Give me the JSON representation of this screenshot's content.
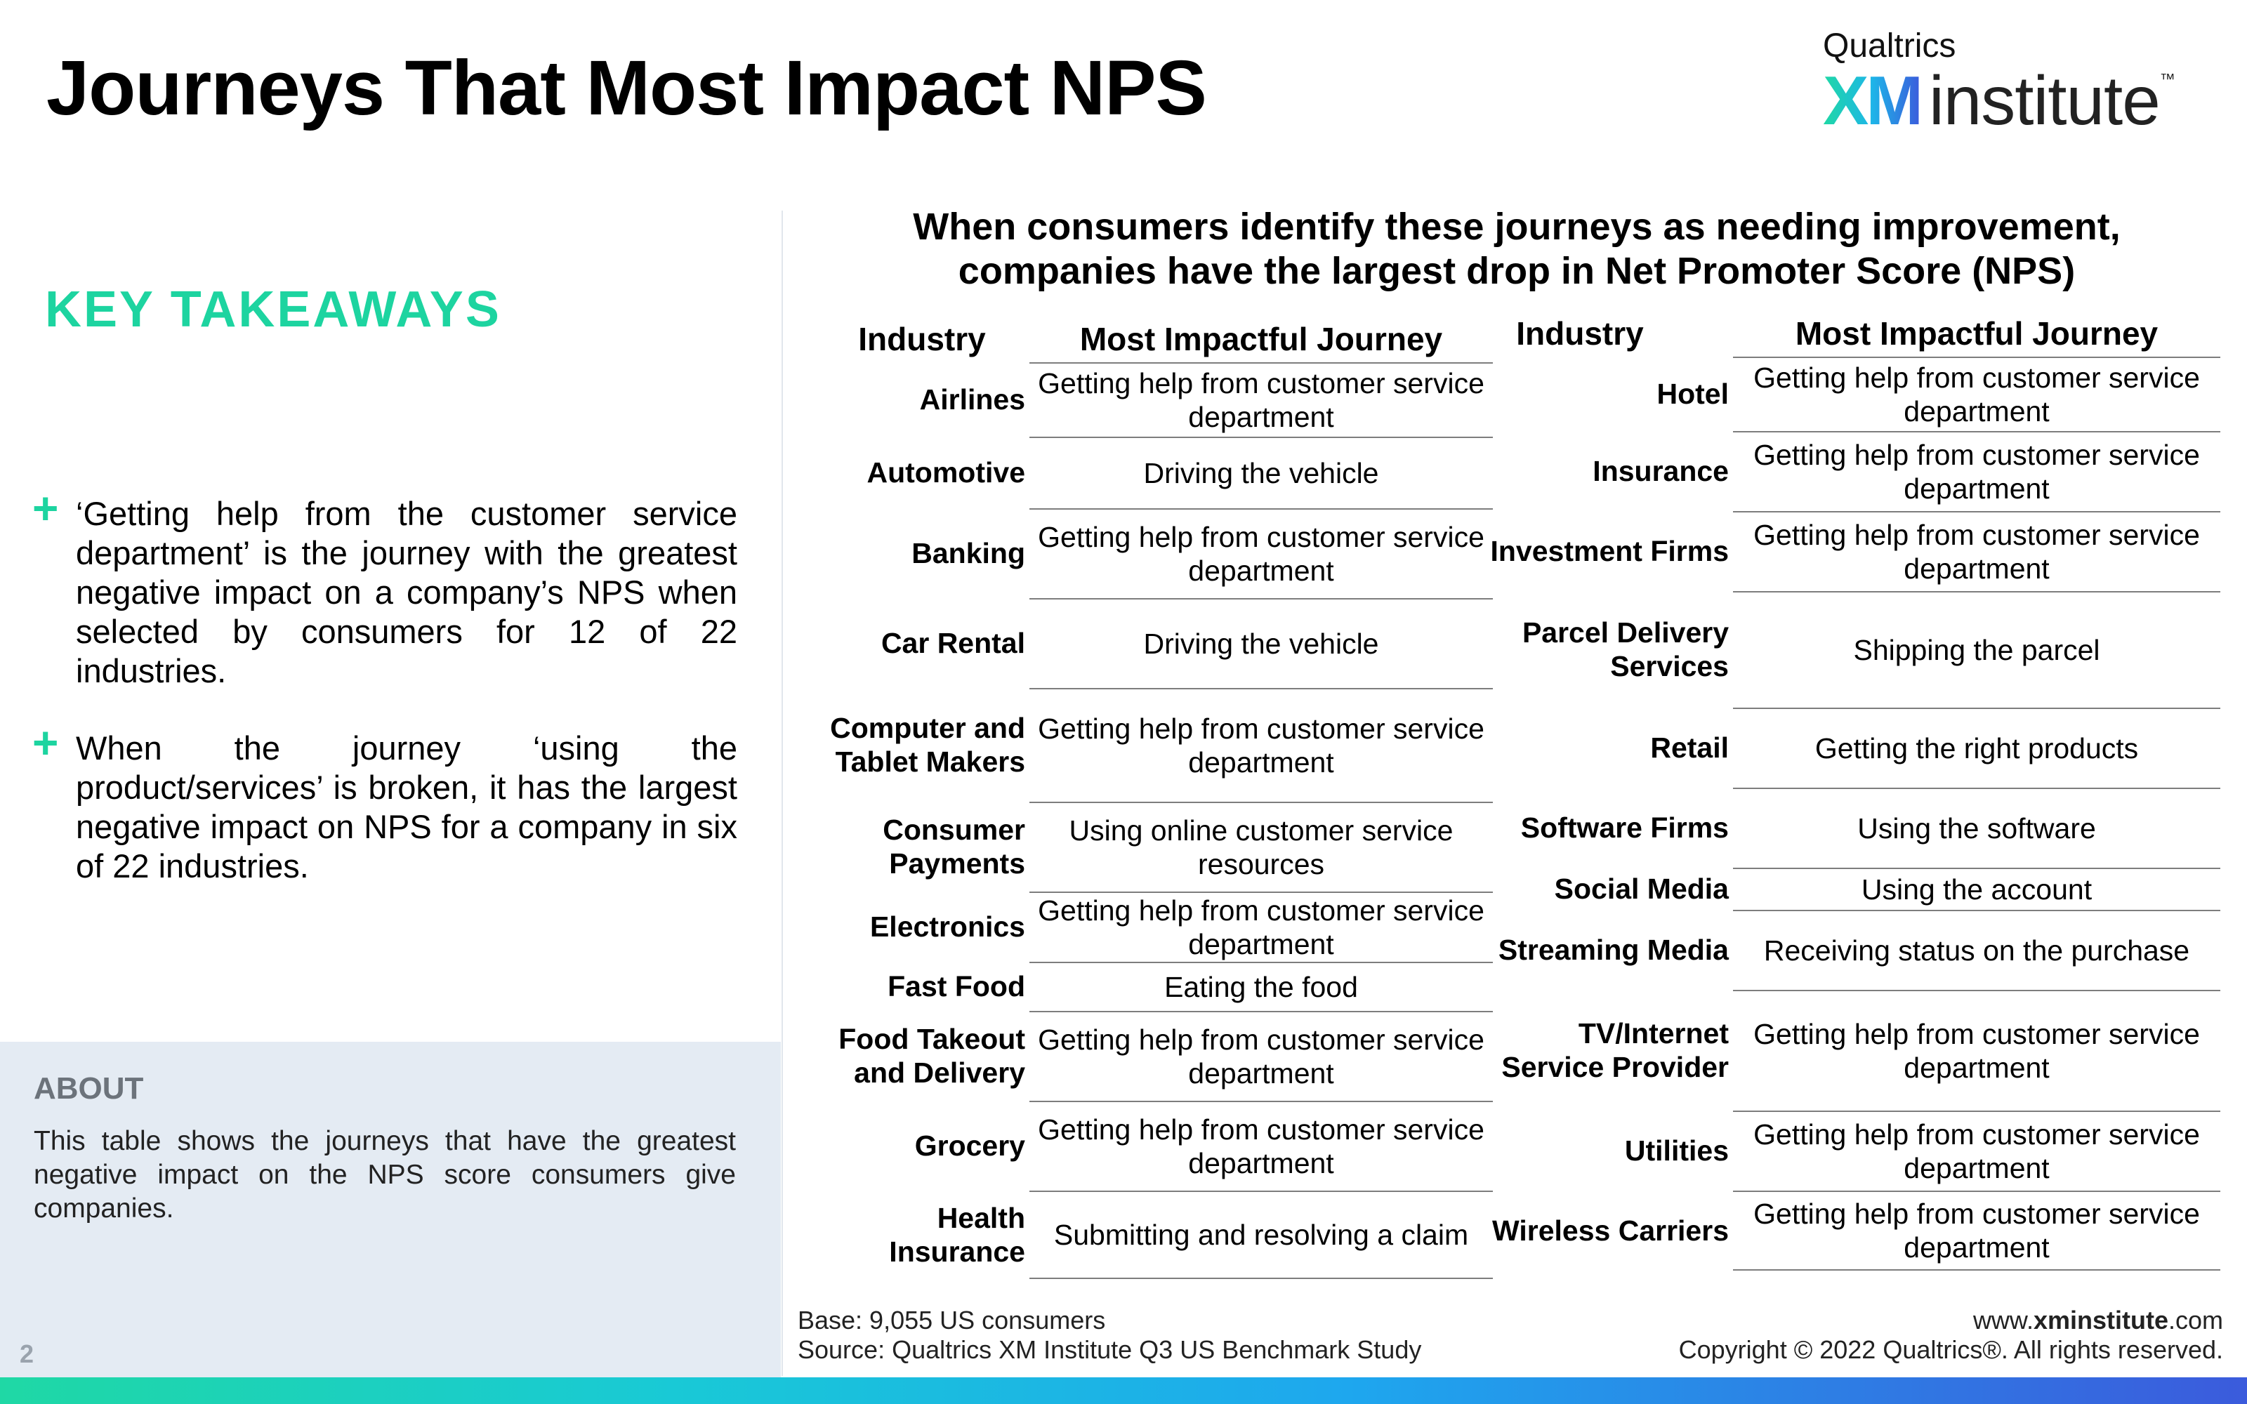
{
  "header": {
    "title": "Journeys That Most Impact NPS",
    "logo": {
      "top": "Qualtrics",
      "xm": "XM",
      "institute": "institute",
      "tm": "™"
    }
  },
  "takeaways": {
    "heading": "KEY TAKEAWAYS",
    "items": [
      {
        "bullet": "+",
        "text": "‘Getting help from the customer service department’ is the journey with the greatest negative impact on a company’s NPS when selected by consumers for 12 of 22 industries."
      },
      {
        "bullet": "+",
        "text": "When the journey ‘using the product/services’ is broken, it has the largest negative impact on NPS for a company in six of 22 industries."
      }
    ]
  },
  "about": {
    "title": "ABOUT",
    "text": "This table shows the journeys that have the greatest negative impact on the NPS score consumers give companies."
  },
  "page_number": "2",
  "table": {
    "subtitle_line1": "When consumers identify these journeys as needing improvement,",
    "subtitle_line2": "companies have the largest drop in Net Promoter Score (NPS)",
    "header_industry": "Industry",
    "header_journey": "Most Impactful Journey",
    "left_rows": [
      {
        "industry": "Airlines",
        "journey": "Getting help from customer service department"
      },
      {
        "industry": "Automotive",
        "journey": "Driving the vehicle"
      },
      {
        "industry": "Banking",
        "journey": "Getting help from customer service department"
      },
      {
        "industry": "Car Rental",
        "journey": "Driving the vehicle"
      },
      {
        "industry": "Computer and Tablet Makers",
        "journey": "Getting help from customer service department"
      },
      {
        "industry": "Consumer Payments",
        "journey": "Using online customer service resources"
      },
      {
        "industry": "Electronics",
        "journey": "Getting help from customer service department"
      },
      {
        "industry": "Fast Food",
        "journey": "Eating the food"
      },
      {
        "industry": "Food Takeout and Delivery",
        "journey": "Getting help from customer service department"
      },
      {
        "industry": "Grocery",
        "journey": "Getting help from customer service department"
      },
      {
        "industry": "Health Insurance",
        "journey": "Submitting and resolving a claim"
      }
    ],
    "right_rows": [
      {
        "industry": "Hotel",
        "journey": "Getting help from customer service department"
      },
      {
        "industry": "Insurance",
        "journey": "Getting help from customer service department"
      },
      {
        "industry": "Investment Firms",
        "journey": "Getting help from customer service department"
      },
      {
        "industry": "Parcel Delivery Services",
        "journey": "Shipping the parcel"
      },
      {
        "industry": "Retail",
        "journey": "Getting the right products"
      },
      {
        "industry": "Software Firms",
        "journey": "Using the software"
      },
      {
        "industry": "Social Media",
        "journey": "Using the account"
      },
      {
        "industry": "Streaming Media",
        "journey": "Receiving status on the purchase"
      },
      {
        "industry": "TV/Internet Service Provider",
        "journey": "Getting help from customer service department"
      },
      {
        "industry": "Utilities",
        "journey": "Getting help from customer service department"
      },
      {
        "industry": "Wireless Carriers",
        "journey": "Getting help from customer service department"
      }
    ]
  },
  "footer": {
    "base": "Base: 9,055 US consumers",
    "source": "Source: Qualtrics XM Institute Q3 US Benchmark Study",
    "site_prefix": "www.",
    "site_bold": "xminstitute",
    "site_suffix": ".com",
    "copyright": "Copyright © 2022 Qualtrics®. All rights reserved."
  },
  "colors": {
    "accent_green": "#1dd4a0",
    "about_bg": "#e4ebf3",
    "gradient_blue": "#3b5bdc"
  }
}
